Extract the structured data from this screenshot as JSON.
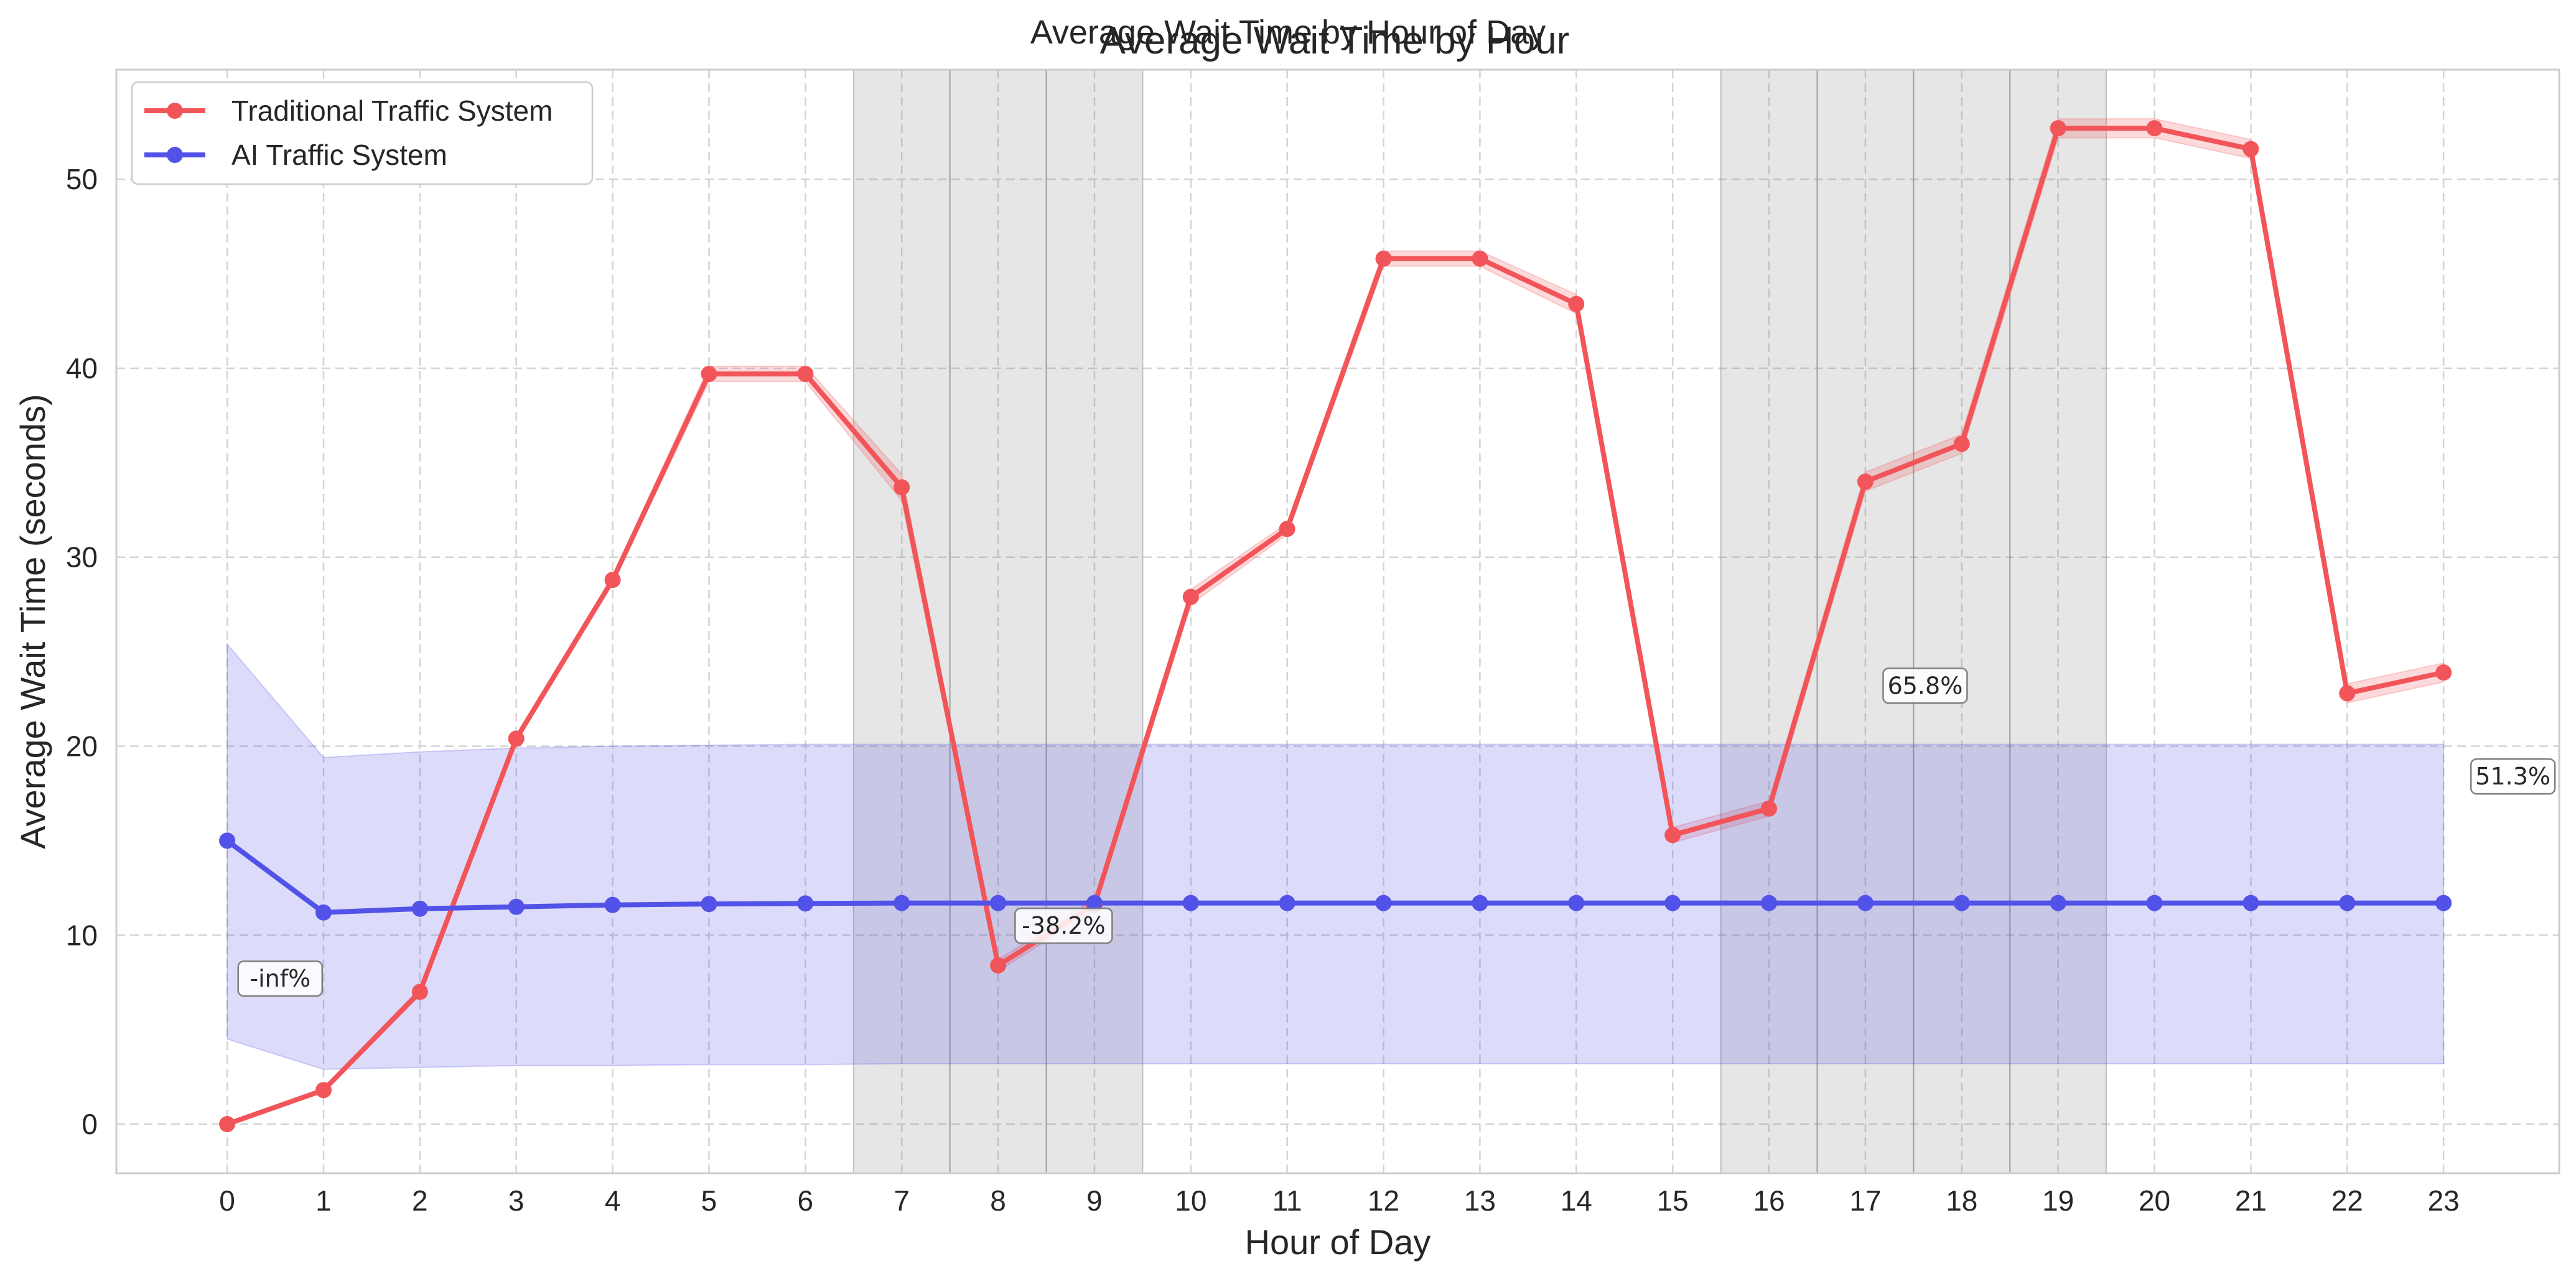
{
  "chart_data": {
    "type": "line",
    "suptitle": "Average Wait Time by Hour of Day",
    "title": "Average Wait Time by Hour",
    "xlabel": "Hour of Day",
    "ylabel": "Average Wait Time (seconds)",
    "x": [
      0,
      1,
      2,
      3,
      4,
      5,
      6,
      7,
      8,
      9,
      10,
      11,
      12,
      13,
      14,
      15,
      16,
      17,
      18,
      19,
      20,
      21,
      22,
      23
    ],
    "xlim": [
      -1.15,
      24.2
    ],
    "ylim": [
      -2.6,
      55.8
    ],
    "yticks": [
      0,
      10,
      20,
      30,
      40,
      50
    ],
    "grid": true,
    "legend_position": "top-left",
    "series": [
      {
        "name": "Traditional Traffic System",
        "color": "#f25559",
        "values": [
          0,
          1.8,
          7.0,
          20.4,
          28.8,
          39.7,
          39.7,
          33.7,
          8.4,
          11.6,
          27.9,
          31.5,
          45.8,
          45.8,
          43.4,
          15.3,
          16.7,
          34.0,
          36.0,
          52.7,
          52.7,
          51.6,
          22.8,
          23.9
        ],
        "band_lower": [
          0,
          1.7,
          6.8,
          20.2,
          28.6,
          39.3,
          39.3,
          33.0,
          8.1,
          11.3,
          27.5,
          31.2,
          45.4,
          45.4,
          42.9,
          14.9,
          16.3,
          33.5,
          35.5,
          52.2,
          52.2,
          51.1,
          22.3,
          23.4
        ],
        "band_upper": [
          0,
          1.9,
          7.2,
          20.6,
          29.0,
          40.1,
          40.1,
          34.4,
          8.7,
          11.9,
          28.3,
          31.8,
          46.2,
          46.2,
          43.9,
          15.7,
          17.1,
          34.5,
          36.5,
          53.2,
          53.2,
          52.1,
          23.3,
          24.4
        ]
      },
      {
        "name": "AI Traffic System",
        "color": "#5252e8",
        "values": [
          15.0,
          11.2,
          11.4,
          11.5,
          11.6,
          11.65,
          11.68,
          11.7,
          11.7,
          11.7,
          11.7,
          11.7,
          11.7,
          11.7,
          11.7,
          11.7,
          11.7,
          11.7,
          11.7,
          11.7,
          11.7,
          11.7,
          11.7,
          11.7
        ],
        "band_lower": [
          4.5,
          2.9,
          3.0,
          3.1,
          3.1,
          3.15,
          3.15,
          3.2,
          3.2,
          3.2,
          3.2,
          3.2,
          3.2,
          3.2,
          3.2,
          3.2,
          3.2,
          3.2,
          3.2,
          3.2,
          3.2,
          3.2,
          3.2,
          3.2
        ],
        "band_upper": [
          25.4,
          19.4,
          19.7,
          19.9,
          20.0,
          20.05,
          20.1,
          20.1,
          20.1,
          20.1,
          20.1,
          20.1,
          20.1,
          20.1,
          20.1,
          20.1,
          20.1,
          20.1,
          20.1,
          20.1,
          20.1,
          20.1,
          20.1,
          20.1
        ]
      }
    ],
    "shaded_spans": [
      [
        6.5,
        7.5
      ],
      [
        7.5,
        8.5
      ],
      [
        8.5,
        9.5
      ],
      [
        15.5,
        16.5
      ],
      [
        16.5,
        17.5
      ],
      [
        17.5,
        18.5
      ],
      [
        18.5,
        19.5
      ]
    ],
    "annotations": [
      {
        "text": "-inf%",
        "x": 0.55,
        "y": 7.7
      },
      {
        "text": "-38.2%",
        "x": 8.68,
        "y": 10.5
      },
      {
        "text": "65.8%",
        "x": 17.62,
        "y": 23.2
      },
      {
        "text": "51.3%",
        "x": 23.72,
        "y": 18.4
      }
    ]
  }
}
